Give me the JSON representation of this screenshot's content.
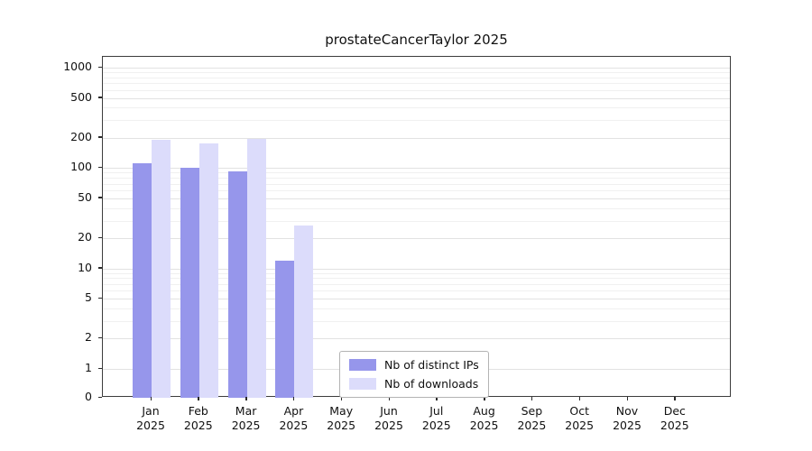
{
  "chart_data": {
    "type": "bar",
    "title": "prostateCancerTaylor 2025",
    "categories": [
      "Jan 2025",
      "Feb 2025",
      "Mar 2025",
      "Apr 2025",
      "May 2025",
      "Jun 2025",
      "Jul 2025",
      "Aug 2025",
      "Sep 2025",
      "Oct 2025",
      "Nov 2025",
      "Dec 2025"
    ],
    "series": [
      {
        "name": "Nb of distinct IPs",
        "color": "#9696eb",
        "values": [
          112,
          100,
          92,
          12,
          0,
          0,
          0,
          0,
          0,
          0,
          0,
          0
        ]
      },
      {
        "name": "Nb of downloads",
        "color": "#dcdcfb",
        "values": [
          190,
          175,
          195,
          27,
          0,
          0,
          0,
          0,
          0,
          0,
          0,
          0
        ]
      }
    ],
    "yticks": [
      0,
      1,
      2,
      5,
      10,
      20,
      50,
      100,
      200,
      500,
      1000
    ],
    "ylim": [
      0,
      1000
    ],
    "yscale": "log",
    "xlabel": "",
    "ylabel": "",
    "grid": true,
    "legend_position": "inside-bottom-center"
  }
}
